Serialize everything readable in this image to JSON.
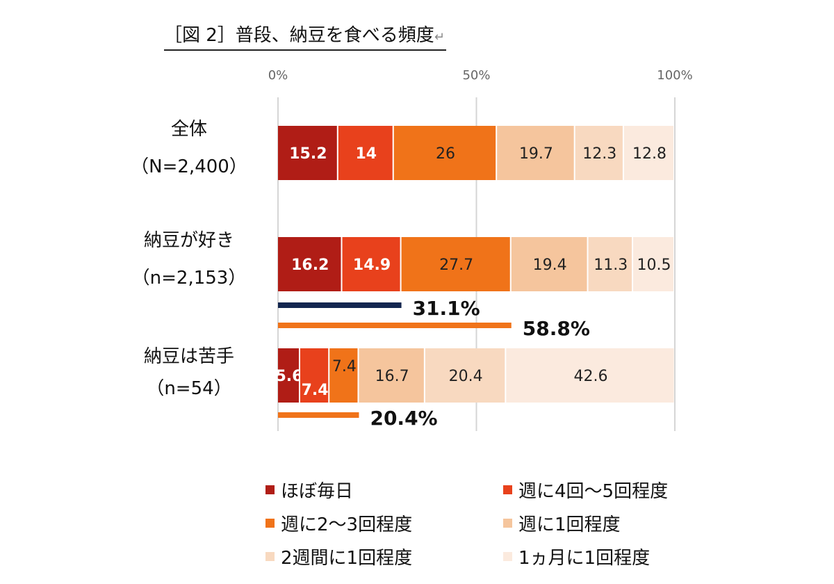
{
  "title": "［図 2］普段、納豆を食べる頻度",
  "title_return_mark": "↵",
  "chart_data": {
    "type": "bar",
    "orientation": "horizontal",
    "stacked": true,
    "percent_stacked": true,
    "xlim": [
      0,
      100
    ],
    "xticks": [
      "0%",
      "50%",
      "100%"
    ],
    "grid": true,
    "legend_position": "bottom",
    "categories": [
      {
        "name": "全体",
        "n": "（N=2,400）"
      },
      {
        "name": "納豆が好き",
        "n": "（n=2,153）"
      },
      {
        "name": "納豆は苦手",
        "n": "（n=54）"
      }
    ],
    "series": [
      {
        "name": "ほぼ毎日",
        "color": "#b01d16",
        "label_color": "#ffffff",
        "label_bold": true,
        "values": [
          15.2,
          16.2,
          5.6
        ]
      },
      {
        "name": "週に4回～5回程度",
        "color": "#e8411c",
        "label_color": "#ffffff",
        "label_bold": true,
        "values": [
          14.0,
          14.9,
          7.4
        ]
      },
      {
        "name": "週に2～3回程度",
        "color": "#f07319",
        "label_color": "#222222",
        "label_bold": false,
        "values": [
          26.0,
          27.7,
          7.4
        ]
      },
      {
        "name": "週に1回程度",
        "color": "#f5c59d",
        "label_color": "#222222",
        "label_bold": false,
        "values": [
          19.7,
          19.4,
          16.7
        ]
      },
      {
        "name": "2週間に1回程度",
        "color": "#f8d9c0",
        "label_color": "#222222",
        "label_bold": false,
        "values": [
          12.3,
          11.3,
          20.4
        ]
      },
      {
        "name": "1ヵ月に1回程度",
        "color": "#fbeade",
        "label_color": "#222222",
        "label_bold": false,
        "values": [
          12.8,
          10.5,
          42.6
        ]
      }
    ],
    "cumulative_markers": [
      {
        "category_index": 1,
        "value": 31.1,
        "label": "31.1%",
        "color": "#13264f"
      },
      {
        "category_index": 1,
        "value": 58.8,
        "label": "58.8%",
        "color": "#f07319"
      },
      {
        "category_index": 2,
        "value": 20.4,
        "label": "20.4%",
        "color": "#f07319"
      }
    ]
  }
}
